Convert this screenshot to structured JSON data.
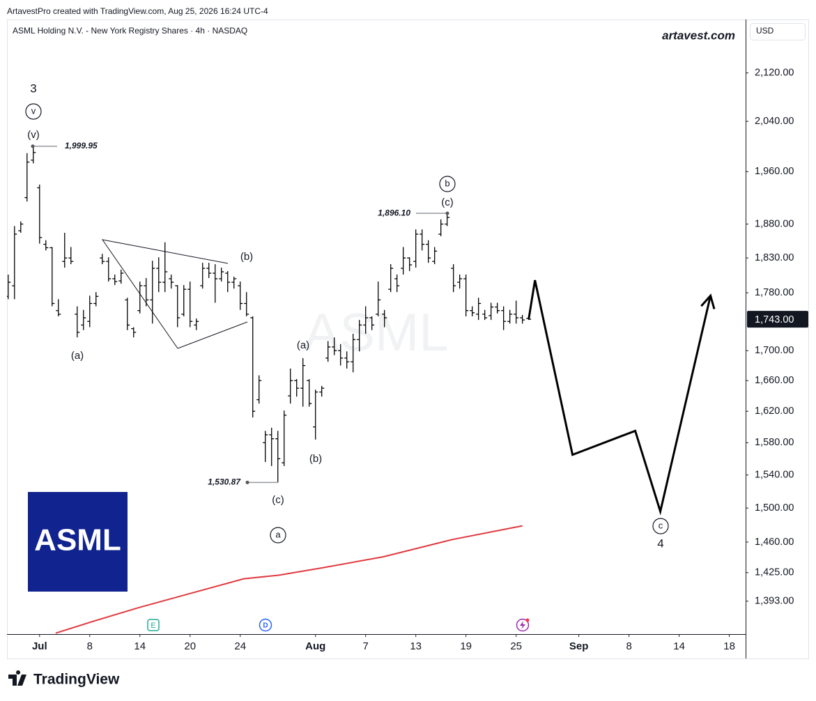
{
  "header": {
    "credit": "ArtavestPro created with TradingView.com, Aug 25, 2026 16:24 UTC-4",
    "site": "artavest.com",
    "currency": "USD",
    "watermark": "ASML",
    "logo": "ASML",
    "footer": "TradingView"
  },
  "chart_data": {
    "type": "ohlc",
    "title": "ASML Holding N.V. - New York Registry Shares · 4h · NASDAQ",
    "log_scale": true,
    "color": "#000000",
    "x": [
      -2.5,
      -2,
      -1.5,
      -1,
      -0.5,
      0,
      0.5,
      1,
      1.5,
      2,
      2.5,
      3,
      3.5,
      4,
      4.5,
      5,
      5.5,
      6,
      6.5,
      7,
      7.5,
      8,
      8.5,
      9,
      9.5,
      10,
      10.5,
      11,
      11.5,
      12,
      12.5,
      13,
      13.5,
      14,
      14.5,
      15,
      15.5,
      16,
      16.5,
      17,
      17.5,
      18,
      18.5,
      19,
      19.5,
      20,
      20.5,
      21,
      21.5,
      22,
      22.5,
      23,
      23.5,
      24,
      24.5,
      25,
      25.5,
      26,
      26.5,
      27,
      27.5,
      28,
      28.5,
      29,
      29.5,
      30,
      30.5,
      31,
      31.5,
      32,
      32.5,
      33,
      33.5,
      34,
      34.5,
      35,
      35.5,
      36,
      36.5,
      37,
      37.5,
      38,
      38.5,
      39
    ],
    "open": [
      1775,
      1790,
      1870,
      1920,
      1978,
      1935,
      1850,
      1845,
      1755,
      1825,
      1830,
      1750,
      1735,
      1740,
      1765,
      1830,
      1825,
      1800,
      1797,
      1770,
      1730,
      1755,
      1790,
      1770,
      1815,
      1795,
      1800,
      1790,
      1750,
      1785,
      1735,
      1790,
      1815,
      1808,
      1800,
      1808,
      1795,
      1790,
      1765,
      1745,
      1635,
      1580,
      1590,
      1585,
      1555,
      1640,
      1660,
      1650,
      1660,
      1600,
      1645,
      1690,
      1705,
      1700,
      1690,
      1685,
      1715,
      1735,
      1745,
      1750,
      1750,
      1785,
      1800,
      1815,
      1830,
      1825,
      1865,
      1850,
      1825,
      1865,
      1880,
      1815,
      1795,
      1800,
      1755,
      1750,
      1750,
      1748,
      1760,
      1755,
      1740,
      1750,
      1745,
      1744
    ],
    "high": [
      1806,
      1877,
      1884,
      1989,
      1999.95,
      1940,
      1856,
      1846,
      1771,
      1867,
      1846,
      1761,
      1756,
      1776,
      1781,
      1836,
      1831,
      1806,
      1813,
      1773,
      1732,
      1796,
      1801,
      1826,
      1831,
      1853,
      1806,
      1791,
      1791,
      1796,
      1744,
      1823,
      1823,
      1821,
      1816,
      1811,
      1803,
      1796,
      1781,
      1747,
      1667,
      1595,
      1599,
      1595,
      1621,
      1676,
      1662,
      1690,
      1662,
      1648,
      1653,
      1713,
      1718,
      1709,
      1699,
      1723,
      1742,
      1761,
      1747,
      1796,
      1756,
      1821,
      1806,
      1846,
      1831,
      1872,
      1872,
      1856,
      1846,
      1887,
      1896.1,
      1821,
      1806,
      1806,
      1761,
      1773,
      1756,
      1766,
      1766,
      1761,
      1756,
      1769,
      1749,
      1747
    ],
    "low": [
      1771,
      1771,
      1867,
      1914,
      1973,
      1851,
      1841,
      1761,
      1747,
      1816,
      1821,
      1718,
      1728,
      1732,
      1761,
      1821,
      1796,
      1791,
      1793,
      1728,
      1718,
      1751,
      1761,
      1737,
      1781,
      1781,
      1786,
      1732,
      1747,
      1732,
      1728,
      1786,
      1801,
      1766,
      1796,
      1781,
      1786,
      1756,
      1747,
      1612,
      1630,
      1556,
      1551,
      1530.87,
      1551,
      1630,
      1639,
      1626,
      1626,
      1584,
      1639,
      1685,
      1694,
      1680,
      1676,
      1671,
      1699,
      1723,
      1728,
      1747,
      1732,
      1781,
      1781,
      1806,
      1811,
      1816,
      1841,
      1823,
      1821,
      1862,
      1877,
      1781,
      1786,
      1747,
      1747,
      1742,
      1742,
      1742,
      1751,
      1728,
      1737,
      1737,
      1737,
      1742
    ],
    "close": [
      1795,
      1865,
      1880,
      1975,
      1990,
      1860,
      1845,
      1765,
      1750,
      1830,
      1825,
      1725,
      1745,
      1765,
      1775,
      1825,
      1800,
      1796,
      1808,
      1735,
      1725,
      1790,
      1770,
      1815,
      1795,
      1810,
      1795,
      1745,
      1785,
      1740,
      1740,
      1815,
      1808,
      1800,
      1810,
      1795,
      1800,
      1765,
      1750,
      1620,
      1660,
      1590,
      1585,
      1560,
      1615,
      1660,
      1650,
      1680,
      1630,
      1645,
      1650,
      1705,
      1700,
      1690,
      1685,
      1715,
      1735,
      1745,
      1735,
      1770,
      1745,
      1815,
      1790,
      1830,
      1820,
      1865,
      1850,
      1830,
      1840,
      1880,
      1890,
      1790,
      1800,
      1755,
      1752,
      1765,
      1745,
      1760,
      1755,
      1740,
      1750,
      1745,
      1742,
      1743
    ],
    "moving_average": {
      "color": "#e0393e",
      "x": [
        1.28,
        4.06,
        7.94,
        12.39,
        16.28,
        19.06,
        22.39,
        27.39,
        32.94,
        38.5
      ],
      "y": [
        1358,
        1370,
        1386,
        1403,
        1418,
        1422,
        1430,
        1443,
        1463,
        1479
      ]
    },
    "projection": {
      "color": "#000000",
      "x": [
        39,
        39.5,
        42.5,
        47.5,
        49.5,
        53.5
      ],
      "y": [
        1743,
        1798,
        1565,
        1595,
        1496,
        1776
      ]
    },
    "price_labels": [
      {
        "value": 1999.95,
        "label": "1,999.95"
      },
      {
        "value": 1896.1,
        "label": "1,896.10"
      },
      {
        "value": 1530.87,
        "label": "1,530.87"
      }
    ],
    "last_price": {
      "value": 1743,
      "label": "1,743.00"
    },
    "annotations": [
      "3",
      "v",
      "(v)",
      "(a)",
      "(b)",
      "(a)",
      "(b)",
      "(c)",
      "a",
      "b",
      "(c)",
      "c",
      "4"
    ],
    "events": [
      "E",
      "D"
    ],
    "xlim": [
      -2.6,
      56.3
    ],
    "ylim": [
      1357,
      2212
    ],
    "xticks": [
      {
        "value": 0,
        "label": "Jul"
      },
      {
        "value": 4,
        "label": "8"
      },
      {
        "value": 8,
        "label": "14"
      },
      {
        "value": 12,
        "label": "20"
      },
      {
        "value": 16,
        "label": "24"
      },
      {
        "value": 22,
        "label": "Aug"
      },
      {
        "value": 26,
        "label": "7"
      },
      {
        "value": 30,
        "label": "13"
      },
      {
        "value": 34,
        "label": "19"
      },
      {
        "value": 38,
        "label": "25"
      },
      {
        "value": 43,
        "label": "Sep"
      },
      {
        "value": 47,
        "label": "8"
      },
      {
        "value": 51,
        "label": "14"
      },
      {
        "value": 55,
        "label": "18"
      }
    ],
    "yticks": [
      {
        "value": 2120,
        "label": "2,120.00"
      },
      {
        "value": 2040,
        "label": "2,040.00"
      },
      {
        "value": 1960,
        "label": "1,960.00"
      },
      {
        "value": 1880,
        "label": "1,880.00"
      },
      {
        "value": 1830,
        "label": "1,830.00"
      },
      {
        "value": 1780,
        "label": "1,780.00"
      },
      {
        "value": 1700,
        "label": "1,700.00"
      },
      {
        "value": 1660,
        "label": "1,660.00"
      },
      {
        "value": 1620,
        "label": "1,620.00"
      },
      {
        "value": 1580,
        "label": "1,580.00"
      },
      {
        "value": 1540,
        "label": "1,540.00"
      },
      {
        "value": 1500,
        "label": "1,500.00"
      },
      {
        "value": 1460,
        "label": "1,460.00"
      },
      {
        "value": 1425,
        "label": "1,425.00"
      },
      {
        "value": 1393,
        "label": "1,393.00"
      }
    ]
  }
}
